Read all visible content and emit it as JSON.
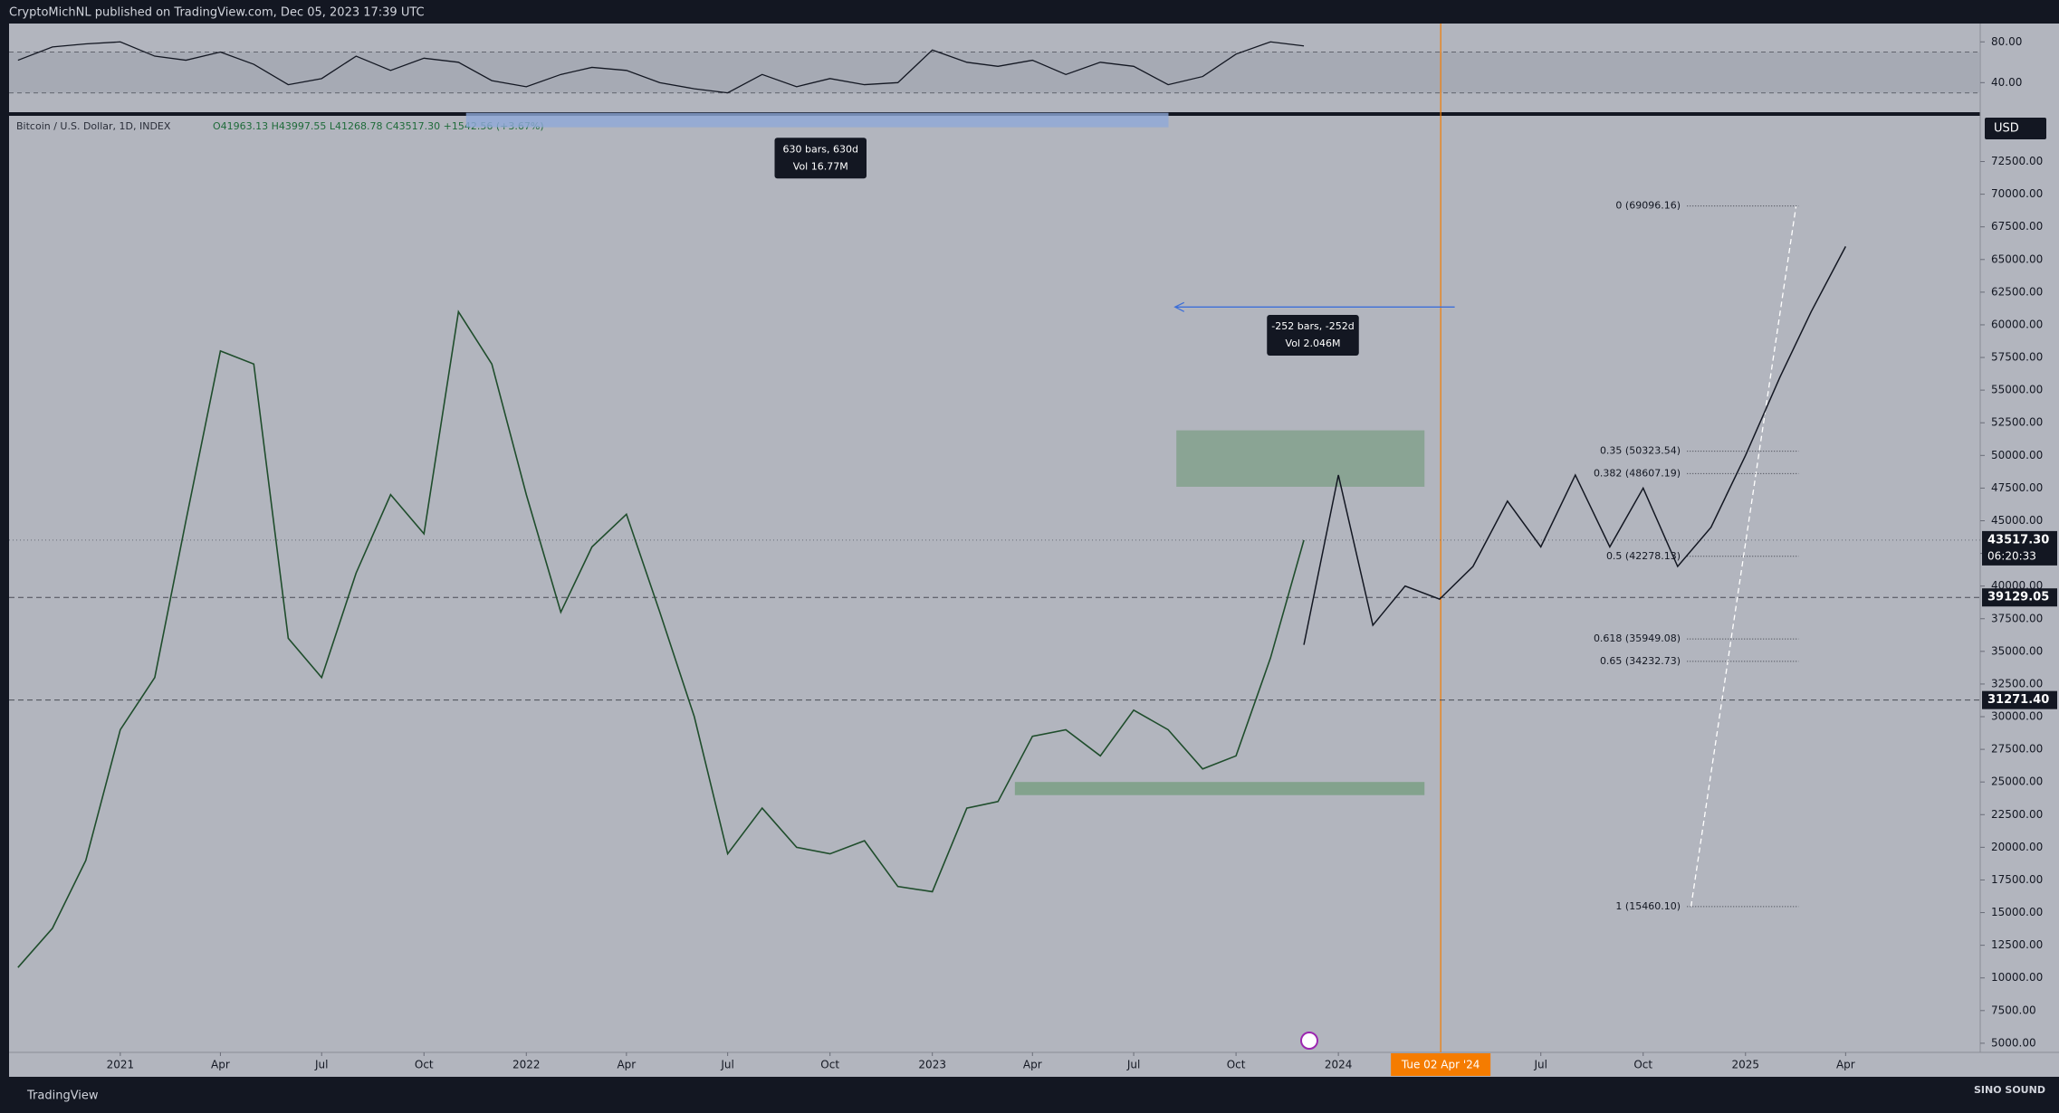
{
  "header": {
    "text": "CryptoMichNL published on TradingView.com, Dec 05, 2023 17:39 UTC"
  },
  "footer": {
    "brand": "TradingView",
    "logo": "SINO SOUND"
  },
  "chart_data": {
    "type": "line",
    "legend": {
      "ohlc": "O41963.13 H43997.55 L41268.78 C43517.30 +1542.56 (+3.67%)"
    },
    "currency": "USD",
    "xlim": [
      "2020-09-23",
      "2025-07-31"
    ],
    "xticks": [
      {
        "value": "2021-01-01",
        "label": "2021"
      },
      {
        "value": "2021-04-01",
        "label": "Apr"
      },
      {
        "value": "2021-07-01",
        "label": "Jul"
      },
      {
        "value": "2021-10-01",
        "label": "Oct"
      },
      {
        "value": "2022-01-01",
        "label": "2022"
      },
      {
        "value": "2022-04-01",
        "label": "Apr"
      },
      {
        "value": "2022-07-01",
        "label": "Jul"
      },
      {
        "value": "2022-10-01",
        "label": "Oct"
      },
      {
        "value": "2023-01-01",
        "label": "2023"
      },
      {
        "value": "2023-04-01",
        "label": "Apr"
      },
      {
        "value": "2023-07-01",
        "label": "Jul"
      },
      {
        "value": "2023-10-01",
        "label": "Oct"
      },
      {
        "value": "2024-01-01",
        "label": "2024"
      },
      {
        "value": "2024-07-01",
        "label": "Jul"
      },
      {
        "value": "2024-10-01",
        "label": "Oct"
      },
      {
        "value": "2025-01-01",
        "label": "2025"
      },
      {
        "value": "2025-04-01",
        "label": "Apr"
      }
    ],
    "ylim": [
      4300,
      76000
    ],
    "yticks": [
      {
        "value": 5000,
        "label": "5000.00"
      },
      {
        "value": 7500,
        "label": "7500.00"
      },
      {
        "value": 10000,
        "label": "10000.00"
      },
      {
        "value": 12500,
        "label": "12500.00"
      },
      {
        "value": 15000,
        "label": "15000.00"
      },
      {
        "value": 17500,
        "label": "17500.00"
      },
      {
        "value": 20000,
        "label": "20000.00"
      },
      {
        "value": 22500,
        "label": "22500.00"
      },
      {
        "value": 25000,
        "label": "25000.00"
      },
      {
        "value": 27500,
        "label": "27500.00"
      },
      {
        "value": 30000,
        "label": "30000.00"
      },
      {
        "value": 32500,
        "label": "32500.00"
      },
      {
        "value": 35000,
        "label": "35000.00"
      },
      {
        "value": 37500,
        "label": "37500.00"
      },
      {
        "value": 40000,
        "label": "40000.00"
      },
      {
        "value": 42500,
        "label": "42500.00"
      },
      {
        "value": 45000,
        "label": "45000.00"
      },
      {
        "value": 47500,
        "label": "47500.00"
      },
      {
        "value": 50000,
        "label": "50000.00"
      },
      {
        "value": 52500,
        "label": "52500.00"
      },
      {
        "value": 55000,
        "label": "55000.00"
      },
      {
        "value": 57500,
        "label": "57500.00"
      },
      {
        "value": 60000,
        "label": "60000.00"
      },
      {
        "value": 62500,
        "label": "62500.00"
      },
      {
        "value": 65000,
        "label": "65000.00"
      },
      {
        "value": 67500,
        "label": "67500.00"
      },
      {
        "value": 70000,
        "label": "70000.00"
      },
      {
        "value": 72500,
        "label": "72500.00"
      }
    ],
    "x": [
      "2020-10",
      "2020-11",
      "2020-12",
      "2021-01",
      "2021-02",
      "2021-03",
      "2021-04",
      "2021-05",
      "2021-06",
      "2021-07",
      "2021-08",
      "2021-09",
      "2021-10",
      "2021-11",
      "2021-12",
      "2022-01",
      "2022-02",
      "2022-03",
      "2022-04",
      "2022-05",
      "2022-06",
      "2022-07",
      "2022-08",
      "2022-09",
      "2022-10",
      "2022-11",
      "2022-12",
      "2023-01",
      "2023-02",
      "2023-03",
      "2023-04",
      "2023-05",
      "2023-06",
      "2023-07",
      "2023-08",
      "2023-09",
      "2023-10",
      "2023-11",
      "2023-12"
    ],
    "series": [
      {
        "name": "Bitcoin / U.S. Dollar, 1D, INDEX",
        "color": "#1f4d2c",
        "values": [
          10800,
          13800,
          19000,
          29000,
          33000,
          45000,
          58000,
          57000,
          36000,
          33000,
          41000,
          47000,
          44000,
          61000,
          57000,
          47000,
          38000,
          43000,
          45500,
          38000,
          30000,
          19500,
          23000,
          20000,
          19500,
          20500,
          17000,
          16600,
          23000,
          23500,
          28500,
          29000,
          27000,
          30500,
          29000,
          26000,
          27000,
          34500,
          43517.3
        ]
      }
    ],
    "projection": {
      "color": "#131722",
      "x": [
        "2023-12",
        "2024-01",
        "2024-02",
        "2024-03",
        "2024-04",
        "2024-05",
        "2024-06",
        "2024-07",
        "2024-08",
        "2024-09",
        "2024-10",
        "2024-11",
        "2024-12",
        "2025-01",
        "2025-02",
        "2025-03",
        "2025-04"
      ],
      "values": [
        35500,
        48500,
        37000,
        40000,
        39000,
        41500,
        46500,
        43000,
        48500,
        43000,
        47500,
        41500,
        44500,
        50000,
        56000,
        61000,
        66000
      ]
    },
    "price_lines": [
      {
        "value": 43517.3,
        "label": "43517.30",
        "countdown": "06:20:33"
      },
      {
        "value": 39129.05,
        "label": "39129.05"
      },
      {
        "value": 31271.4,
        "label": "31271.40"
      }
    ],
    "fib": [
      {
        "value": 69096.16,
        "label": "0 (69096.16)"
      },
      {
        "value": 50323.54,
        "label": "0.35 (50323.54)"
      },
      {
        "value": 48607.19,
        "label": "0.382 (48607.19)"
      },
      {
        "value": 42278.13,
        "label": "0.5 (42278.13)"
      },
      {
        "value": 35949.08,
        "label": "0.618 (35949.08)"
      },
      {
        "value": 34232.73,
        "label": "0.65 (34232.73)"
      },
      {
        "value": 15460.1,
        "label": "1 (15460.10)"
      }
    ],
    "measures": [
      {
        "line1": "630 bars, 630d",
        "line2": "Vol 16.77M"
      },
      {
        "line1": "-252 bars, -252d",
        "line2": "Vol 2.046M"
      }
    ],
    "marker": {
      "date": "2024-04-02",
      "label": "Tue 02 Apr '24",
      "color": "#f57c00"
    },
    "rsi": {
      "color": "#131722",
      "ylim": [
        11,
        98
      ],
      "yticks": [
        {
          "value": 80,
          "label": "80.00"
        },
        {
          "value": 40,
          "label": "40.00"
        }
      ],
      "levels": [
        70,
        30
      ],
      "values": [
        62,
        75,
        78,
        80,
        66,
        62,
        70,
        58,
        38,
        44,
        66,
        52,
        64,
        60,
        42,
        36,
        48,
        55,
        52,
        40,
        34,
        30,
        48,
        36,
        44,
        38,
        40,
        72,
        60,
        56,
        62,
        48,
        60,
        56,
        38,
        46,
        68,
        80,
        76
      ]
    }
  }
}
